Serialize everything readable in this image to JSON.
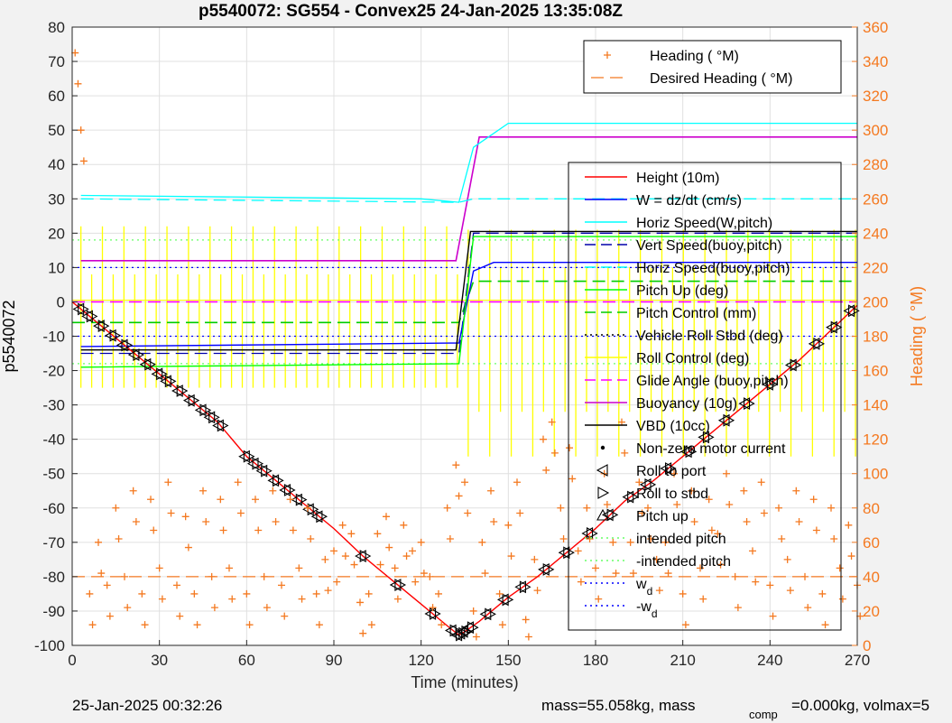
{
  "chart_data": {
    "type": "line",
    "title": "p5540072: SG554 - Convex25 24-Jan-2025 13:35:08Z",
    "xlabel": "Time (minutes)",
    "ylabel": "p5540072",
    "ylabel_right": "Heading (  °M)",
    "xlim": [
      0,
      270
    ],
    "ylim": [
      -100,
      80
    ],
    "ylim_right": [
      0,
      360
    ],
    "xticks": [
      "0",
      "30",
      "60",
      "90",
      "120",
      "150",
      "180",
      "210",
      "240",
      "270"
    ],
    "yticks": [
      "-100",
      "-90",
      "-80",
      "-70",
      "-60",
      "-50",
      "-40",
      "-30",
      "-20",
      "-10",
      "0",
      "10",
      "20",
      "30",
      "40",
      "50",
      "60",
      "70",
      "80"
    ],
    "yticks_right": [
      "0",
      "20",
      "40",
      "60",
      "80",
      "100",
      "120",
      "140",
      "160",
      "180",
      "200",
      "220",
      "240",
      "260",
      "280",
      "300",
      "320",
      "340",
      "360"
    ],
    "grid": true,
    "colors": {
      "height": "#ff0000",
      "w": "#0000ff",
      "horiz_speed": "#00ffff",
      "vert_speed": "#0000aa",
      "pitch": "#00ff00",
      "pitch_control": "#00cc00",
      "roll": "#ffff00",
      "glide": "#ff00ff",
      "buoyancy": "#cc00cc",
      "vbd": "#000000",
      "heading": "#f47920",
      "intended_pitch": "#66ff66",
      "wd": "#0000ff"
    },
    "heading_legend": [
      "Heading (  °M)",
      "Desired Heading (    °M)"
    ],
    "legend": [
      "Height (10m)",
      "W = dz/dt (cm/s)",
      "Horiz Speed(W,pitch)",
      "Vert Speed(buoy,pitch)",
      "Horiz Speed(buoy,pitch)",
      "Pitch Up (deg)",
      "Pitch Control (mm)",
      "Vehicle Roll Stbd (deg)",
      "Roll Control (deg)",
      "Glide Angle (buoy,pitch)",
      "Buoyancy (10g)",
      "VBD (10cc)",
      "Non-zero motor current",
      "Roll to port",
      "Roll to stbd",
      "Pitch up",
      "intended pitch",
      "-intended pitch",
      "w",
      "-w"
    ],
    "legend_sub": [
      "d",
      "d"
    ],
    "series": [
      {
        "name": "Height (10m)",
        "x": [
          0,
          10,
          20,
          30,
          40,
          50,
          60,
          70,
          80,
          90,
          100,
          110,
          120,
          130,
          133,
          135,
          140,
          150,
          160,
          170,
          180,
          190,
          200,
          210,
          220,
          230,
          240,
          250,
          260,
          270
        ],
        "values": [
          0,
          -7,
          -14,
          -21,
          -28,
          -35,
          -45,
          -52,
          -59,
          -66,
          -74,
          -81,
          -88,
          -95,
          -97,
          -96,
          -93,
          -86,
          -80,
          -73,
          -66,
          -58,
          -52,
          -45,
          -38,
          -31,
          -24,
          -17,
          -9,
          -1
        ]
      },
      {
        "name": "W = dz/dt (cm/s)",
        "x": [
          3,
          130,
          133,
          138,
          145,
          270
        ],
        "values": [
          -13,
          -12,
          -12,
          9,
          11.5,
          11.5
        ]
      },
      {
        "name": "Horiz Speed(W,pitch)",
        "x": [
          3,
          120,
          133,
          138,
          150,
          270
        ],
        "values": [
          31,
          30,
          29,
          45,
          52,
          52
        ]
      },
      {
        "name": "Vert Speed(buoy,pitch)",
        "x": [
          3,
          133,
          138,
          270
        ],
        "values": [
          -15,
          -15,
          20,
          20
        ]
      },
      {
        "name": "Horiz Speed(buoy,pitch)",
        "x": [
          3,
          133,
          138,
          270
        ],
        "values": [
          30,
          29,
          30,
          30
        ]
      },
      {
        "name": "Pitch Up (deg)",
        "x": [
          3,
          133,
          138,
          270
        ],
        "values": [
          -19,
          -18,
          19,
          19
        ]
      },
      {
        "name": "Pitch Control (mm)",
        "x": [
          0,
          133,
          138,
          270
        ],
        "values": [
          -6,
          -6,
          6,
          6
        ]
      },
      {
        "name": "Buoyancy (10g)",
        "x": [
          3,
          132,
          140,
          270
        ],
        "values": [
          12,
          12,
          48,
          48
        ]
      },
      {
        "name": "VBD (10cc)",
        "x": [
          3,
          132,
          137,
          270
        ],
        "values": [
          -14,
          -14,
          20.5,
          20.5
        ]
      },
      {
        "name": "Glide Angle (buoy,pitch)",
        "x": [
          0,
          270
        ],
        "values": [
          0,
          0
        ]
      },
      {
        "name": "intended pitch",
        "x": [
          0,
          270
        ],
        "values": [
          18,
          18
        ]
      },
      {
        "name": "-intended pitch",
        "x": [
          0,
          270
        ],
        "values": [
          -18,
          -18
        ]
      },
      {
        "name": "w",
        "x": [
          0,
          270
        ],
        "values": [
          10,
          10
        ]
      },
      {
        "name": "-w",
        "x": [
          0,
          270
        ],
        "values": [
          -10,
          -10
        ]
      },
      {
        "name": "Desired Heading (    °M)",
        "axis": "right",
        "x": [
          0,
          270
        ],
        "values": [
          40,
          40
        ]
      }
    ],
    "markers": {
      "roll_to_port_x": [
        3,
        6,
        10,
        14,
        18,
        22,
        26,
        30,
        33,
        37,
        41,
        45,
        48,
        51,
        60,
        63,
        66,
        70,
        74,
        78,
        82,
        85,
        100,
        112,
        124,
        131,
        133,
        134,
        135,
        137,
        143,
        149,
        155,
        163,
        170,
        178,
        185,
        192,
        198,
        205,
        212,
        218,
        225,
        232,
        240,
        248,
        256,
        262,
        268
      ],
      "heading_x": [
        1,
        3,
        6,
        9,
        12,
        15,
        18,
        21,
        24,
        27,
        30,
        33,
        36,
        39,
        42,
        45,
        48,
        51,
        54,
        57,
        60,
        63,
        66,
        69,
        72,
        75,
        78,
        81,
        84,
        87,
        90,
        93,
        96,
        99,
        102,
        105,
        108,
        111,
        114,
        117,
        120,
        123,
        126,
        129,
        132,
        135,
        138,
        141,
        144,
        147,
        150,
        153,
        156,
        159,
        162,
        165,
        168,
        171,
        174,
        177,
        180,
        183,
        186,
        189,
        192,
        195,
        198,
        201,
        204,
        207,
        210,
        213,
        216,
        219,
        222,
        225,
        228,
        231,
        234,
        237,
        240,
        243,
        246,
        249,
        252,
        255,
        258,
        261,
        264,
        267,
        270
      ],
      "heading_values": [
        345,
        300,
        30,
        60,
        35,
        80,
        40,
        90,
        30,
        85,
        45,
        95,
        35,
        75,
        30,
        90,
        40,
        85,
        45,
        95,
        30,
        85,
        40,
        90,
        35,
        85,
        45,
        80,
        30,
        50,
        55,
        70,
        65,
        25,
        30,
        65,
        75,
        45,
        70,
        55,
        60,
        40,
        30,
        80,
        105,
        95,
        20,
        60,
        90,
        30,
        70,
        95,
        15,
        50,
        120,
        130,
        80,
        115,
        55,
        80,
        45,
        100,
        60,
        130,
        60,
        95,
        80,
        50,
        60,
        100,
        30,
        90,
        45,
        85,
        65,
        100,
        40,
        90,
        55,
        95,
        35,
        80,
        50,
        90,
        40,
        85,
        30,
        80,
        45,
        70,
        35
      ]
    }
  },
  "footer": {
    "date": "25-Jan-2025 00:32:26",
    "mass": "mass=55.058kg, mass",
    "comp": "comp",
    "tail": "=0.000kg, volmax=5"
  }
}
